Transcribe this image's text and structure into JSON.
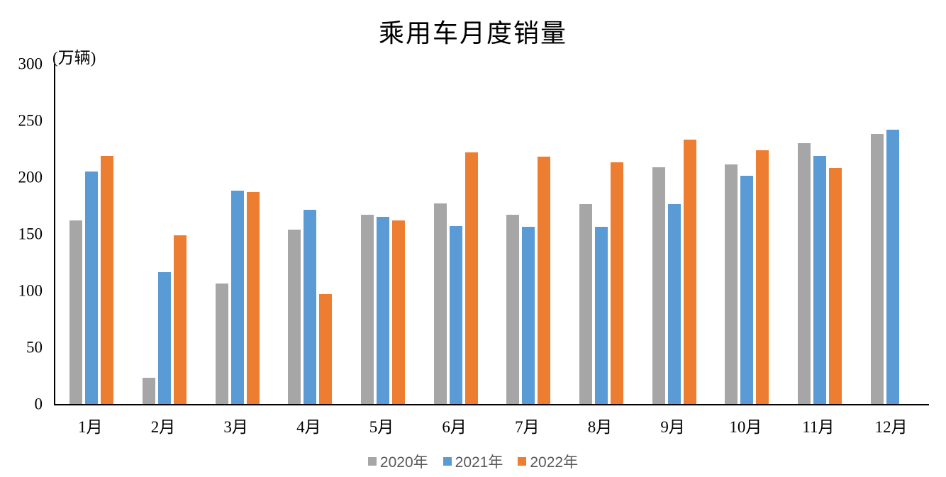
{
  "chart_data": {
    "type": "bar",
    "title": "乘用车月度销量",
    "unit_label": "(万辆)",
    "categories": [
      "1月",
      "2月",
      "3月",
      "4月",
      "5月",
      "6月",
      "7月",
      "8月",
      "9月",
      "10月",
      "11月",
      "12月"
    ],
    "series": [
      {
        "name": "2020年",
        "color": "#A6A6A6",
        "values": [
          162,
          23,
          106,
          154,
          167,
          177,
          167,
          176,
          209,
          211,
          230,
          238
        ]
      },
      {
        "name": "2021年",
        "color": "#5B9BD5",
        "values": [
          205,
          116,
          188,
          171,
          165,
          157,
          156,
          156,
          176,
          201,
          219,
          242
        ]
      },
      {
        "name": "2022年",
        "color": "#ED7D31",
        "values": [
          219,
          149,
          187,
          97,
          162,
          222,
          218,
          213,
          233,
          224,
          208,
          null
        ]
      }
    ],
    "ylim": [
      0,
      300
    ],
    "yticks": [
      0,
      50,
      100,
      150,
      200,
      250,
      300
    ],
    "grid": false,
    "legend_position": "bottom",
    "axis_color": "#000000",
    "legend_text_color": "#595959"
  }
}
